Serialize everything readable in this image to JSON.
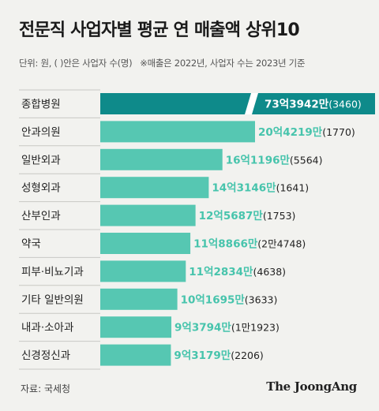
{
  "title": "전문직 사업자별 평균 연 매출액 상위10",
  "unit_note": "단위: 원, ( )안은 사업자 수(명)",
  "year_note": "※매출은 2022년, 사업자 수는 2023년 기준",
  "source": "자료: 국세청",
  "brand": "The JoongAng",
  "colors": {
    "top_bar": "#0e8a8a",
    "bar": "#56c7b2",
    "top_value": "#ffffff",
    "value": "#47c4ac",
    "count": "#222222",
    "label": "#222222",
    "grid": "#c8c8c4"
  },
  "chart_data": {
    "type": "bar",
    "orientation": "horizontal",
    "categories": [
      "종합병원",
      "안과의원",
      "일반외과",
      "성형외과",
      "산부인과",
      "약국",
      "피부·비뇨기과",
      "기타 일반의원",
      "내과·소아과",
      "신경정신과"
    ],
    "values": [
      7339420000,
      2042190000,
      1611960000,
      1431460000,
      1256870000,
      1188660000,
      1128340000,
      1016950000,
      937940000,
      931790000
    ],
    "value_labels": [
      "73억3942만",
      "20억4219만",
      "16억1196만",
      "14억3146만",
      "12억5687만",
      "11억8866만",
      "11억2834만",
      "10억1695만",
      "9억3794만",
      "9억3179만"
    ],
    "count_labels": [
      "(3460)",
      "(1770)",
      "(5564)",
      "(1641)",
      "(1753)",
      "(2만4748)",
      "(4638)",
      "(3633)",
      "(1만1923)",
      "(2206)"
    ],
    "axis_break": true
  }
}
